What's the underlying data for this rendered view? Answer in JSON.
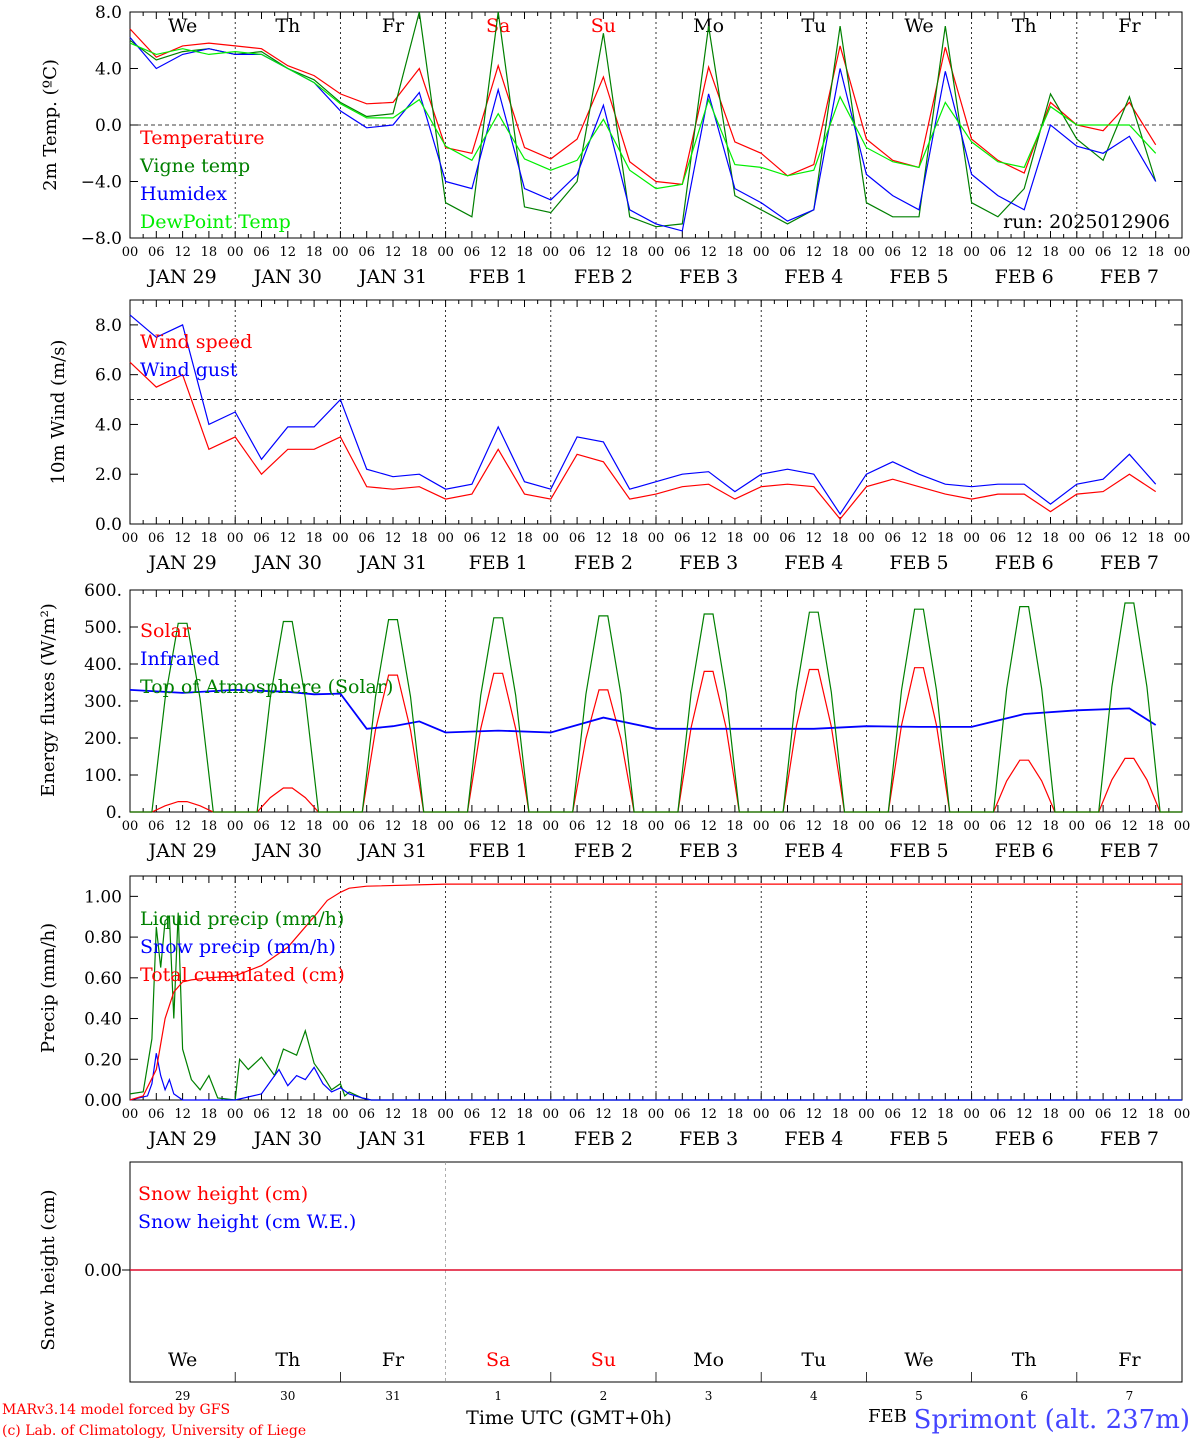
{
  "chart_data": [
    {
      "type": "line",
      "panel": "temperature",
      "ylabel": "2m Temp. (ºC)",
      "ylim": [
        -8,
        8
      ],
      "yticks": [
        "8.0",
        "4.0",
        "0.0",
        "−4.0",
        "−8.0"
      ],
      "reference_line": 0,
      "annotation": "run: 2025012906",
      "day_names": [
        "We",
        "Th",
        "Fr",
        "Sa",
        "Su",
        "Mo",
        "Tu",
        "We",
        "Th",
        "Fr"
      ],
      "weekend_color": "#ff0000",
      "x_hours": [
        0,
        6,
        12,
        18,
        24,
        30,
        36,
        42,
        48,
        54,
        60,
        66,
        72,
        78,
        84,
        90,
        96,
        102,
        108,
        114,
        120,
        126,
        132,
        138,
        144,
        150,
        156,
        162,
        168,
        174,
        180,
        186,
        192,
        198,
        204,
        210,
        216,
        222,
        228,
        234
      ],
      "series": [
        {
          "name": "Temperature",
          "color": "#ff0000",
          "values": [
            6.8,
            4.8,
            5.6,
            5.8,
            5.6,
            5.4,
            4.2,
            3.5,
            2.2,
            1.5,
            1.6,
            4.0,
            -1.6,
            -2.0,
            4.2,
            -1.6,
            -2.4,
            -1.0,
            3.4,
            -2.6,
            -4.0,
            -4.2,
            4.1,
            -1.2,
            -2.0,
            -3.6,
            -2.8,
            5.6,
            -1.0,
            -2.5,
            -3.0,
            5.5,
            -1.0,
            -2.5,
            -3.4,
            1.6,
            0.0,
            -0.4,
            1.6,
            -1.4
          ]
        },
        {
          "name": "Vigne temp",
          "color": "#008000",
          "values": [
            6.0,
            4.6,
            5.2,
            5.4,
            5.0,
            5.2,
            4.0,
            3.2,
            1.6,
            0.6,
            0.8,
            8.0,
            -5.5,
            -6.5,
            8.0,
            -5.8,
            -6.2,
            -4.0,
            6.5,
            -6.5,
            -7.2,
            -7.0,
            7.0,
            -5.0,
            -6.0,
            -7.0,
            -6.0,
            7.0,
            -5.5,
            -6.5,
            -6.5,
            7.0,
            -5.5,
            -6.5,
            -4.5,
            2.2,
            -1.0,
            -2.5,
            2.0,
            -4.0
          ]
        },
        {
          "name": "Humidex",
          "color": "#0000ff",
          "values": [
            6.2,
            4.0,
            5.0,
            5.4,
            5.0,
            5.0,
            4.0,
            3.0,
            1.0,
            -0.2,
            0.0,
            2.3,
            -4.0,
            -4.5,
            2.5,
            -4.5,
            -5.3,
            -3.5,
            1.4,
            -6.0,
            -7.0,
            -7.5,
            2.2,
            -4.5,
            -5.5,
            -6.8,
            -6.0,
            4.0,
            -3.5,
            -5.0,
            -6.0,
            3.8,
            -3.5,
            -5.0,
            -6.0,
            0.0,
            -1.5,
            -2.0,
            -0.8,
            -4.0
          ]
        },
        {
          "name": "DewPoint Temp",
          "color": "#00ee00",
          "values": [
            5.8,
            5.0,
            5.4,
            5.0,
            5.2,
            5.0,
            4.0,
            3.0,
            1.5,
            0.5,
            0.5,
            1.8,
            -1.5,
            -2.5,
            0.8,
            -2.4,
            -3.2,
            -2.5,
            0.4,
            -3.2,
            -4.5,
            -4.2,
            1.8,
            -2.8,
            -3.0,
            -3.6,
            -3.2,
            2.0,
            -1.6,
            -2.6,
            -3.0,
            1.6,
            -1.2,
            -2.6,
            -3.0,
            1.3,
            0.0,
            0.0,
            0.0,
            -2.0
          ]
        }
      ]
    },
    {
      "type": "line",
      "panel": "wind",
      "ylabel": "10m Wind (m/s)",
      "ylim": [
        0,
        9
      ],
      "yticks": [
        "8.0",
        "6.0",
        "4.0",
        "2.0",
        "0.0"
      ],
      "reference_line": 5,
      "x_hours": [
        0,
        6,
        12,
        18,
        24,
        30,
        36,
        42,
        48,
        54,
        60,
        66,
        72,
        78,
        84,
        90,
        96,
        102,
        108,
        114,
        120,
        126,
        132,
        138,
        144,
        150,
        156,
        162,
        168,
        174,
        180,
        186,
        192,
        198,
        204,
        210,
        216,
        222,
        228,
        234
      ],
      "series": [
        {
          "name": "Wind speed",
          "color": "#ff0000",
          "values": [
            6.5,
            5.5,
            6.0,
            3.0,
            3.5,
            2.0,
            3.0,
            3.0,
            3.5,
            1.5,
            1.4,
            1.5,
            1.0,
            1.2,
            3.0,
            1.2,
            1.0,
            2.8,
            2.5,
            1.0,
            1.2,
            1.5,
            1.6,
            1.0,
            1.5,
            1.6,
            1.5,
            0.2,
            1.5,
            1.8,
            1.5,
            1.2,
            1.0,
            1.2,
            1.2,
            0.5,
            1.2,
            1.3,
            2.0,
            1.3
          ]
        },
        {
          "name": "Wind gust",
          "color": "#0000ff",
          "values": [
            8.4,
            7.5,
            8.0,
            4.0,
            4.5,
            2.6,
            3.9,
            3.9,
            5.0,
            2.2,
            1.9,
            2.0,
            1.4,
            1.6,
            3.9,
            1.7,
            1.4,
            3.5,
            3.3,
            1.4,
            1.7,
            2.0,
            2.1,
            1.3,
            2.0,
            2.2,
            2.0,
            0.4,
            2.0,
            2.5,
            2.0,
            1.6,
            1.5,
            1.6,
            1.6,
            0.8,
            1.6,
            1.8,
            2.8,
            1.6
          ]
        }
      ]
    },
    {
      "type": "line",
      "panel": "energy",
      "ylabel": "Energy fluxes (W/m²)",
      "ylim": [
        0,
        600
      ],
      "yticks": [
        "600.",
        "500.",
        "400.",
        "300.",
        "200.",
        "100.",
        "0."
      ],
      "series": [
        {
          "name": "Solar",
          "color": "#ff0000",
          "shape": "daily_bell",
          "daily_peaks": [
            28,
            65,
            370,
            375,
            330,
            380,
            385,
            390,
            140,
            145
          ]
        },
        {
          "name": "Infrared",
          "color": "#0000ff",
          "x_hours": [
            0,
            12,
            24,
            36,
            42,
            48,
            54,
            60,
            66,
            72,
            84,
            96,
            108,
            120,
            132,
            144,
            156,
            168,
            180,
            192,
            204,
            216,
            228,
            234
          ],
          "values": [
            330,
            322,
            330,
            325,
            318,
            320,
            225,
            232,
            245,
            215,
            220,
            215,
            255,
            225,
            225,
            225,
            225,
            232,
            230,
            230,
            265,
            275,
            280,
            235
          ]
        },
        {
          "name": "Top of Atmosphere (Solar)",
          "color": "#008000",
          "shape": "daily_bell",
          "daily_peaks": [
            510,
            515,
            520,
            525,
            530,
            535,
            540,
            548,
            555,
            565
          ]
        }
      ]
    },
    {
      "type": "line",
      "panel": "precip",
      "ylabel": "Precip (mm/h)",
      "ylim": [
        0,
        1.1
      ],
      "yticks": [
        "1.00",
        "0.80",
        "0.60",
        "0.40",
        "0.20",
        "0.00"
      ],
      "series": [
        {
          "name": "Liquid precip (mm/h)",
          "color": "#008000",
          "x_hours": [
            0,
            3,
            5,
            6,
            7,
            8,
            9,
            10,
            11,
            12,
            14,
            16,
            18,
            20,
            24,
            25,
            27,
            30,
            33,
            35,
            38,
            40,
            42,
            44,
            46,
            48,
            49,
            50,
            53,
            55,
            60,
            66,
            240
          ],
          "values": [
            0.03,
            0.04,
            0.3,
            0.85,
            0.65,
            0.88,
            0.9,
            0.4,
            0.92,
            0.25,
            0.1,
            0.05,
            0.12,
            0.01,
            0.0,
            0.2,
            0.15,
            0.21,
            0.12,
            0.25,
            0.22,
            0.34,
            0.18,
            0.12,
            0.05,
            0.08,
            0.02,
            0.04,
            0.01,
            0.0,
            0.0,
            0.0,
            0.0
          ]
        },
        {
          "name": "Snow precip (mm/h)",
          "color": "#0000ff",
          "x_hours": [
            0,
            4,
            5,
            6,
            7,
            8,
            9,
            10,
            12,
            24,
            30,
            34,
            36,
            38,
            40,
            42,
            44,
            46,
            48,
            50,
            53,
            55,
            240
          ],
          "values": [
            0,
            0.02,
            0.08,
            0.23,
            0.12,
            0.05,
            0.1,
            0.03,
            0,
            0,
            0.03,
            0.15,
            0.07,
            0.12,
            0.1,
            0.16,
            0.08,
            0.04,
            0.06,
            0.03,
            0.01,
            0,
            0
          ]
        },
        {
          "name": "Total cumulated (cm)",
          "color": "#ff0000",
          "x_hours": [
            0,
            3,
            6,
            8,
            10,
            12,
            14,
            18,
            24,
            30,
            36,
            42,
            45,
            48,
            50,
            54,
            72,
            240
          ],
          "values": [
            0,
            0.02,
            0.15,
            0.4,
            0.53,
            0.58,
            0.59,
            0.6,
            0.61,
            0.66,
            0.75,
            0.9,
            0.98,
            1.02,
            1.04,
            1.05,
            1.06,
            1.06
          ]
        }
      ]
    },
    {
      "type": "line",
      "panel": "snow",
      "ylabel": "Snow height (cm)",
      "yticks": [
        "0.00"
      ],
      "series": [
        {
          "name": "Snow height (cm)",
          "color": "#ff0000",
          "values": [
            0,
            0
          ]
        },
        {
          "name": "Snow height (cm W.E.)",
          "color": "#0000ff",
          "values": [
            0,
            0
          ]
        }
      ]
    }
  ],
  "axis": {
    "hour_ticks": [
      "00",
      "06",
      "12",
      "18"
    ],
    "date_labels": [
      "JAN 29",
      "JAN 30",
      "JAN 31",
      "FEB  1",
      "FEB  2",
      "FEB  3",
      "FEB  4",
      "FEB  5",
      "FEB  6",
      "FEB  7"
    ],
    "day_names": [
      "We",
      "Th",
      "Fr",
      "Sa",
      "Su",
      "Mo",
      "Tu",
      "We",
      "Th",
      "Fr"
    ],
    "day_numbers": [
      "29",
      "30",
      "31",
      "1",
      "2",
      "3",
      "4",
      "5",
      "6",
      "7"
    ],
    "month_label": "FEB",
    "xlabel": "Time UTC (GMT+0h)"
  },
  "footer": {
    "credit_line_1": "MARv3.14 model forced by GFS",
    "credit_line_2": "(c) Lab. of Climatology, University of Liege",
    "station": "Sprimont (alt. 237m)"
  }
}
